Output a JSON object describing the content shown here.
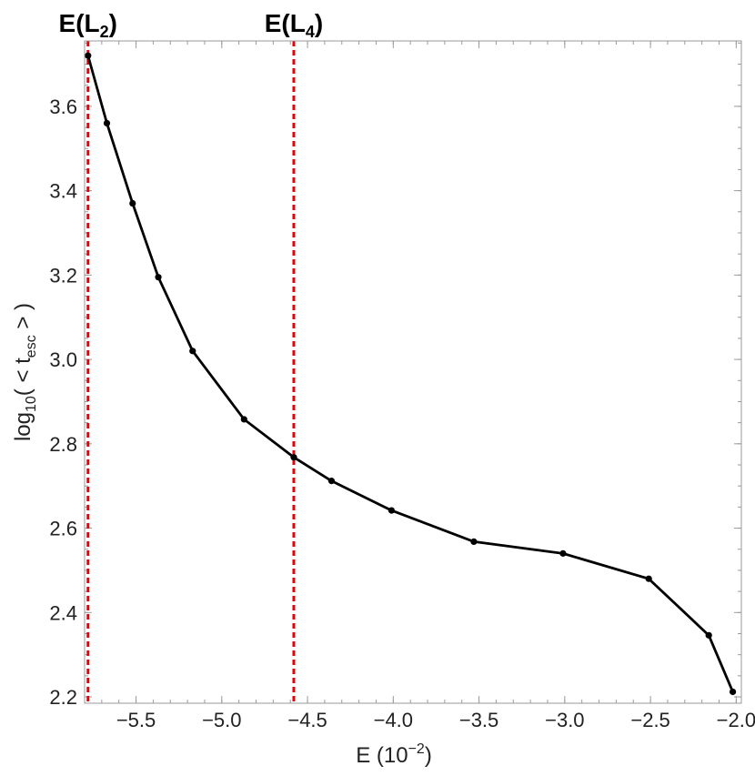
{
  "chart_data": {
    "type": "line",
    "xlabel": {
      "main": "E (10",
      "sup": "−2",
      "close": ")"
    },
    "ylabel": {
      "pre": "log",
      "sub1": "10",
      "mid": "( < t",
      "sub2": "esc",
      "post": " > )"
    },
    "xlim": [
      -5.8,
      -1.97
    ],
    "ylim": [
      2.185,
      3.755
    ],
    "x_ticks": [
      {
        "value": -5.5,
        "label": "−5.5"
      },
      {
        "value": -5.0,
        "label": "−5.0"
      },
      {
        "value": -4.5,
        "label": "−4.5"
      },
      {
        "value": -4.0,
        "label": "−4.0"
      },
      {
        "value": -3.5,
        "label": "−3.5"
      },
      {
        "value": -3.0,
        "label": "−3.0"
      },
      {
        "value": -2.5,
        "label": "−2.5"
      },
      {
        "value": -2.0,
        "label": "−2.0"
      }
    ],
    "y_ticks": [
      {
        "value": 2.2,
        "label": "2.2"
      },
      {
        "value": 2.4,
        "label": "2.4"
      },
      {
        "value": 2.6,
        "label": "2.6"
      },
      {
        "value": 2.8,
        "label": "2.8"
      },
      {
        "value": 3.0,
        "label": "3.0"
      },
      {
        "value": 3.2,
        "label": "3.2"
      },
      {
        "value": 3.4,
        "label": "3.4"
      },
      {
        "value": 3.6,
        "label": "3.6"
      }
    ],
    "series": [
      {
        "color": "#000000",
        "x": [
          -5.78,
          -5.67,
          -5.52,
          -5.37,
          -5.17,
          -4.87,
          -4.58,
          -4.36,
          -4.01,
          -3.53,
          -3.01,
          -2.51,
          -2.16,
          -2.02
        ],
        "y": [
          3.72,
          3.56,
          3.37,
          3.195,
          3.02,
          2.858,
          2.768,
          2.712,
          2.642,
          2.568,
          2.54,
          2.48,
          2.346,
          2.212
        ]
      }
    ],
    "vlines": [
      {
        "x": -5.78,
        "color": "#e8000b",
        "style": "dashed",
        "label": {
          "pre": "E(L",
          "sub": "2",
          "post": ")"
        }
      },
      {
        "x": -4.58,
        "color": "#e8000b",
        "style": "dashed",
        "label": {
          "pre": "E(L",
          "sub": "4",
          "post": ")"
        }
      }
    ],
    "grid": false
  }
}
